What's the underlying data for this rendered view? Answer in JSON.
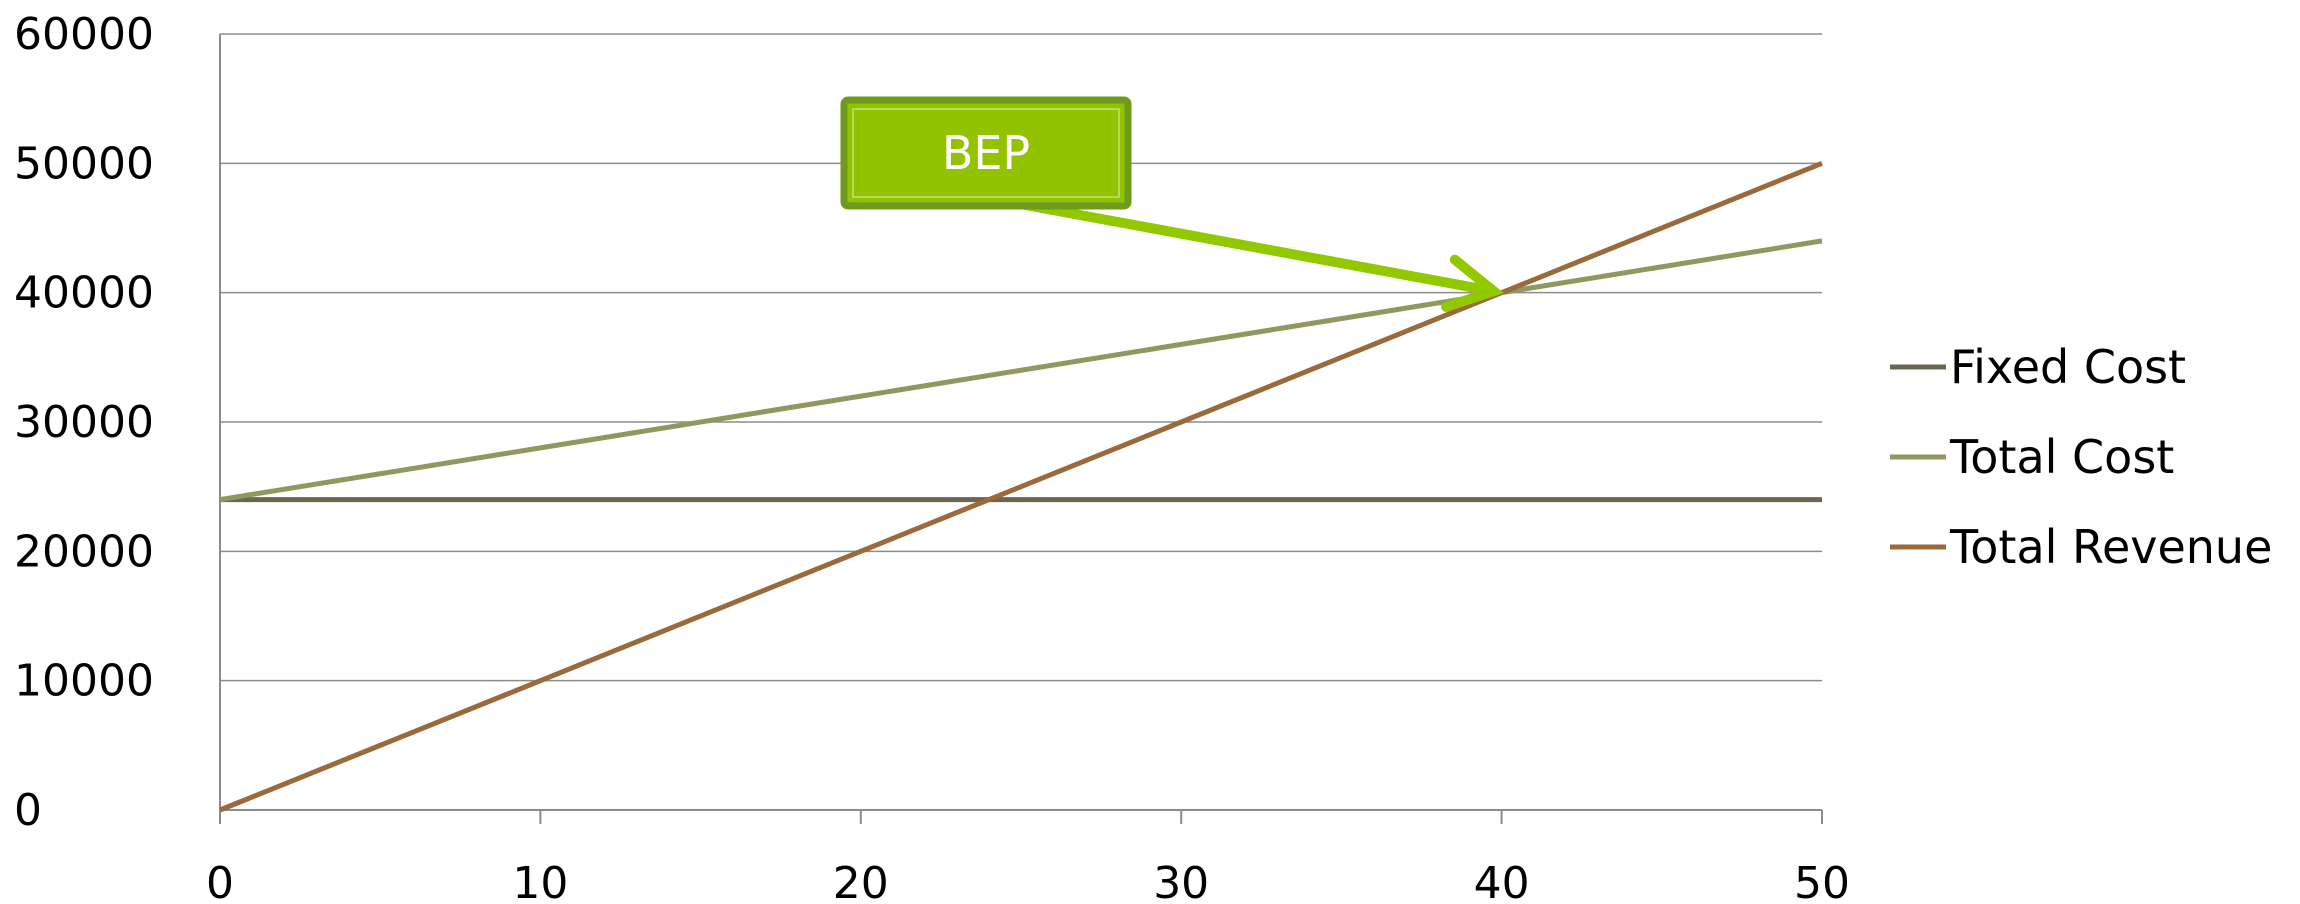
{
  "chart_data": {
    "type": "line",
    "title": "",
    "xlabel": "",
    "ylabel": "",
    "x": [
      0,
      10,
      20,
      30,
      40,
      50
    ],
    "xlim": [
      0,
      50
    ],
    "ylim": [
      0,
      60000
    ],
    "x_ticks": [
      "0",
      "10",
      "20",
      "30",
      "40",
      "50"
    ],
    "y_ticks": [
      "0",
      "10000",
      "20000",
      "30000",
      "40000",
      "50000",
      "60000"
    ],
    "grid": "horizontal",
    "legend_position": "right",
    "series": [
      {
        "name": "Fixed Cost",
        "color": "#6b6552",
        "values": [
          24000,
          24000,
          24000,
          24000,
          24000,
          24000
        ]
      },
      {
        "name": "Total Cost",
        "color": "#8c9a60",
        "values": [
          24000,
          28000,
          32000,
          36000,
          40000,
          44000
        ]
      },
      {
        "name": "Total Revenue",
        "color": "#9a6a3c",
        "values": [
          0,
          10000,
          20000,
          30000,
          40000,
          50000
        ]
      }
    ],
    "annotations": [
      {
        "text": "BEP",
        "points_to": {
          "x": 40,
          "y": 40000
        },
        "fill_color": "#92c200",
        "border_color": "#6e9a1e",
        "arrow_color": "#92c800"
      }
    ]
  }
}
